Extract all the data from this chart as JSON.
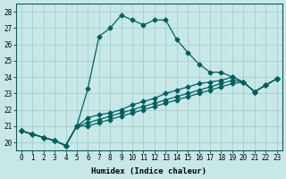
{
  "xlabel": "Humidex (Indice chaleur)",
  "ylabel": "",
  "background_color": "#c8e8e8",
  "grid_color": "#a0c8c8",
  "line_color": "#006060",
  "xlim": [
    -0.5,
    23.5
  ],
  "ylim": [
    19.5,
    28.5
  ],
  "xticks": [
    0,
    1,
    2,
    3,
    4,
    5,
    6,
    7,
    8,
    9,
    10,
    11,
    12,
    13,
    14,
    15,
    16,
    17,
    18,
    19,
    20,
    21,
    22,
    23
  ],
  "yticks": [
    20,
    21,
    22,
    23,
    24,
    25,
    26,
    27,
    28
  ],
  "series": [
    [
      20.7,
      20.5,
      20.3,
      20.1,
      19.8,
      21.0,
      23.3,
      26.5,
      27.0,
      27.8,
      27.5,
      27.2,
      27.5,
      27.5,
      26.3,
      25.5,
      24.8,
      24.3,
      24.3,
      24.0,
      23.7,
      23.1,
      23.5,
      23.9
    ],
    [
      20.7,
      20.5,
      20.3,
      20.1,
      19.8,
      21.0,
      21.5,
      21.7,
      21.8,
      22.0,
      22.3,
      22.5,
      22.7,
      23.0,
      23.2,
      23.4,
      23.6,
      23.7,
      23.8,
      24.0,
      23.7,
      23.1,
      23.5,
      23.9
    ],
    [
      20.7,
      20.5,
      20.3,
      20.1,
      19.8,
      21.0,
      21.2,
      21.4,
      21.6,
      21.8,
      22.0,
      22.2,
      22.4,
      22.6,
      22.8,
      23.0,
      23.2,
      23.4,
      23.6,
      23.8,
      23.7,
      23.1,
      23.5,
      23.9
    ],
    [
      20.7,
      20.5,
      20.3,
      20.1,
      19.8,
      21.0,
      21.0,
      21.2,
      21.4,
      21.6,
      21.8,
      22.0,
      22.2,
      22.4,
      22.6,
      22.8,
      23.0,
      23.2,
      23.4,
      23.6,
      23.7,
      23.1,
      23.5,
      23.9
    ]
  ]
}
